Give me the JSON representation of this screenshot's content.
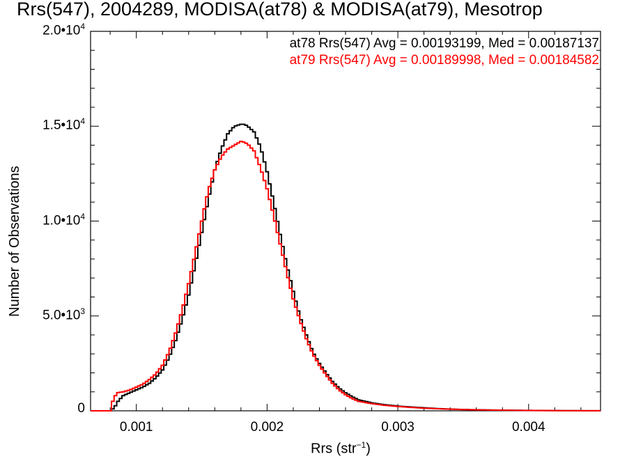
{
  "chart_data": {
    "type": "line",
    "title": "Rrs(547), 2004289, MODISA(at78) & MODISA(at79), Mesotrop",
    "xlabel": "Rrs (str",
    "xlabel_sup": "−1",
    "xlabel_end": ")",
    "ylabel": "Number of Observations",
    "xlim": [
      0.00065,
      0.00455
    ],
    "ylim": [
      0,
      20000
    ],
    "x_ticks": [
      {
        "value": 0.001,
        "label": "0.001"
      },
      {
        "value": 0.002,
        "label": "0.002"
      },
      {
        "value": 0.003,
        "label": "0.003"
      },
      {
        "value": 0.004,
        "label": "0.004"
      }
    ],
    "y_ticks": [
      {
        "value": 0,
        "base": "0",
        "exp": ""
      },
      {
        "value": 5000,
        "base": "5.0•10",
        "exp": "3"
      },
      {
        "value": 10000,
        "base": "1.0•10",
        "exp": "4"
      },
      {
        "value": 15000,
        "base": "1.5•10",
        "exp": "4"
      },
      {
        "value": 20000,
        "base": "2.0•10",
        "exp": "4"
      }
    ],
    "legend": [
      {
        "text": "at78 Rrs(547) Avg = 0.00193199, Med = 0.00187137",
        "color": "#000000"
      },
      {
        "text": "at79 Rrs(547) Avg = 0.00189998, Med = 0.00184582",
        "color": "#ff0000"
      }
    ],
    "legend_position": "top-right",
    "series": [
      {
        "color": "#000000",
        "x": [
          0.00065,
          0.0008,
          0.00083,
          0.00086,
          0.0009,
          0.00095,
          0.001,
          0.00105,
          0.0011,
          0.00115,
          0.0012,
          0.00125,
          0.0013,
          0.00135,
          0.0014,
          0.00145,
          0.0015,
          0.00155,
          0.0016,
          0.00165,
          0.0017,
          0.00175,
          0.0018,
          0.00183,
          0.00186,
          0.0019,
          0.00195,
          0.002,
          0.00205,
          0.0021,
          0.00215,
          0.0022,
          0.00225,
          0.0023,
          0.00235,
          0.0024,
          0.00245,
          0.0025,
          0.00255,
          0.0026,
          0.00265,
          0.0027,
          0.0028,
          0.0029,
          0.003,
          0.0031,
          0.0032,
          0.0033,
          0.0034,
          0.0035,
          0.0036,
          0.0037,
          0.0038,
          0.0039,
          0.004,
          0.0041,
          0.0042,
          0.0043,
          0.0044,
          0.00455
        ],
        "y": [
          0,
          0,
          150,
          500,
          800,
          950,
          1100,
          1250,
          1450,
          1750,
          2150,
          2800,
          3700,
          4800,
          6100,
          7700,
          9400,
          11100,
          12700,
          13800,
          14600,
          15000,
          15100,
          15100,
          14950,
          14700,
          13900,
          12600,
          11000,
          9300,
          7700,
          6300,
          5000,
          4000,
          3100,
          2500,
          2000,
          1550,
          1200,
          950,
          750,
          580,
          420,
          320,
          250,
          200,
          160,
          120,
          90,
          70,
          55,
          45,
          35,
          28,
          22,
          17,
          13,
          10,
          7,
          5
        ]
      },
      {
        "color": "#ff0000",
        "x": [
          0.00065,
          0.0008,
          0.00082,
          0.00085,
          0.0009,
          0.00095,
          0.001,
          0.00105,
          0.0011,
          0.00115,
          0.0012,
          0.00125,
          0.0013,
          0.00135,
          0.0014,
          0.00145,
          0.0015,
          0.00155,
          0.0016,
          0.00165,
          0.0017,
          0.00175,
          0.0018,
          0.00183,
          0.00186,
          0.0019,
          0.00195,
          0.002,
          0.00205,
          0.0021,
          0.00215,
          0.0022,
          0.00225,
          0.0023,
          0.00235,
          0.0024,
          0.00245,
          0.0025,
          0.00255,
          0.0026,
          0.00265,
          0.0027,
          0.0028,
          0.0029,
          0.003,
          0.0031,
          0.0032,
          0.0033,
          0.0034,
          0.0035,
          0.0036,
          0.0037,
          0.0038,
          0.0039,
          0.004,
          0.0041,
          0.0042,
          0.0043,
          0.0044,
          0.00455
        ],
        "y": [
          0,
          0,
          500,
          950,
          1000,
          1100,
          1250,
          1400,
          1650,
          1950,
          2400,
          3100,
          4100,
          5300,
          6700,
          8300,
          10000,
          11600,
          12700,
          13400,
          13800,
          14000,
          14200,
          14150,
          14000,
          13700,
          12800,
          11700,
          10300,
          8800,
          7300,
          5900,
          4800,
          3800,
          3000,
          2400,
          1900,
          1450,
          1100,
          850,
          650,
          500,
          380,
          290,
          230,
          180,
          140,
          110,
          85,
          65,
          50,
          40,
          30,
          24,
          18,
          14,
          11,
          8,
          6,
          4
        ]
      }
    ]
  }
}
